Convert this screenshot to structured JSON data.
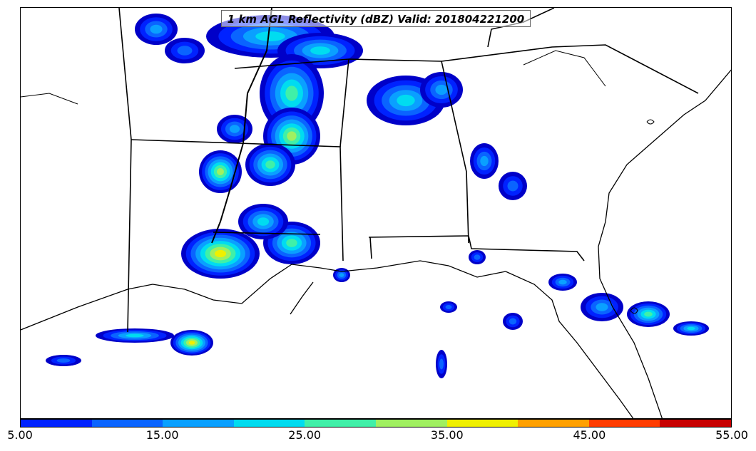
{
  "title": "1 km AGL Reflectivity (dBZ) Valid: 201804221200",
  "colorbar": {
    "colors": [
      "#0000c8",
      "#0022ff",
      "#0a64ff",
      "#0aa0ff",
      "#00dcf0",
      "#40f0a8",
      "#a0f060",
      "#f0f000",
      "#ffa000",
      "#ff3c00",
      "#c80000"
    ],
    "tick_labels": [
      "5.00",
      "15.00",
      "25.00",
      "35.00",
      "45.00",
      "55.00"
    ],
    "range": [
      5,
      55
    ]
  },
  "icons": [
    "map-echo-cells"
  ]
}
